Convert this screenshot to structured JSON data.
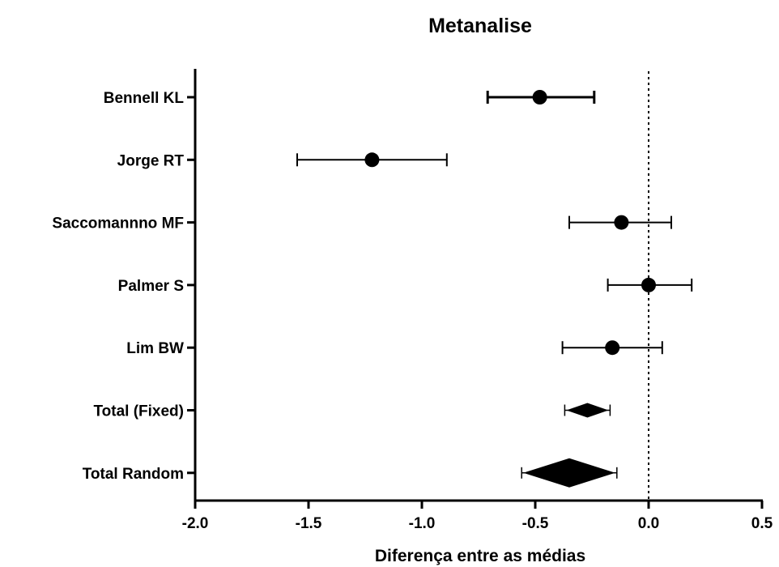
{
  "chart_data": {
    "type": "forest",
    "title": "Metanalise",
    "xlabel": "Diferença entre as médias",
    "ylabel": "",
    "xlim": [
      -2.0,
      0.5
    ],
    "x_ticks": [
      "-2.0",
      "-1.5",
      "-1.0",
      "-0.5",
      "0.0",
      "0.5"
    ],
    "x_tick_values": [
      -2.0,
      -1.5,
      -1.0,
      -0.5,
      0.0,
      0.5
    ],
    "reference_line": 0.0,
    "grid": false,
    "studies": [
      {
        "label": "Bennell KL",
        "mean": -0.48,
        "lower": -0.71,
        "upper": -0.24,
        "marker": "circle"
      },
      {
        "label": "Jorge RT",
        "mean": -1.22,
        "lower": -1.55,
        "upper": -0.89,
        "marker": "circle"
      },
      {
        "label": "Saccomannno MF",
        "mean": -0.12,
        "lower": -0.35,
        "upper": 0.1,
        "marker": "circle"
      },
      {
        "label": "Palmer S",
        "mean": 0.0,
        "lower": -0.18,
        "upper": 0.19,
        "marker": "circle"
      },
      {
        "label": "Lim BW",
        "mean": -0.16,
        "lower": -0.38,
        "upper": 0.06,
        "marker": "circle"
      },
      {
        "label": "Total (Fixed)",
        "mean": -0.27,
        "lower": -0.37,
        "upper": -0.17,
        "marker": "diamond"
      },
      {
        "label": "Total Random",
        "mean": -0.35,
        "lower": -0.56,
        "upper": -0.14,
        "marker": "diamond"
      }
    ]
  }
}
